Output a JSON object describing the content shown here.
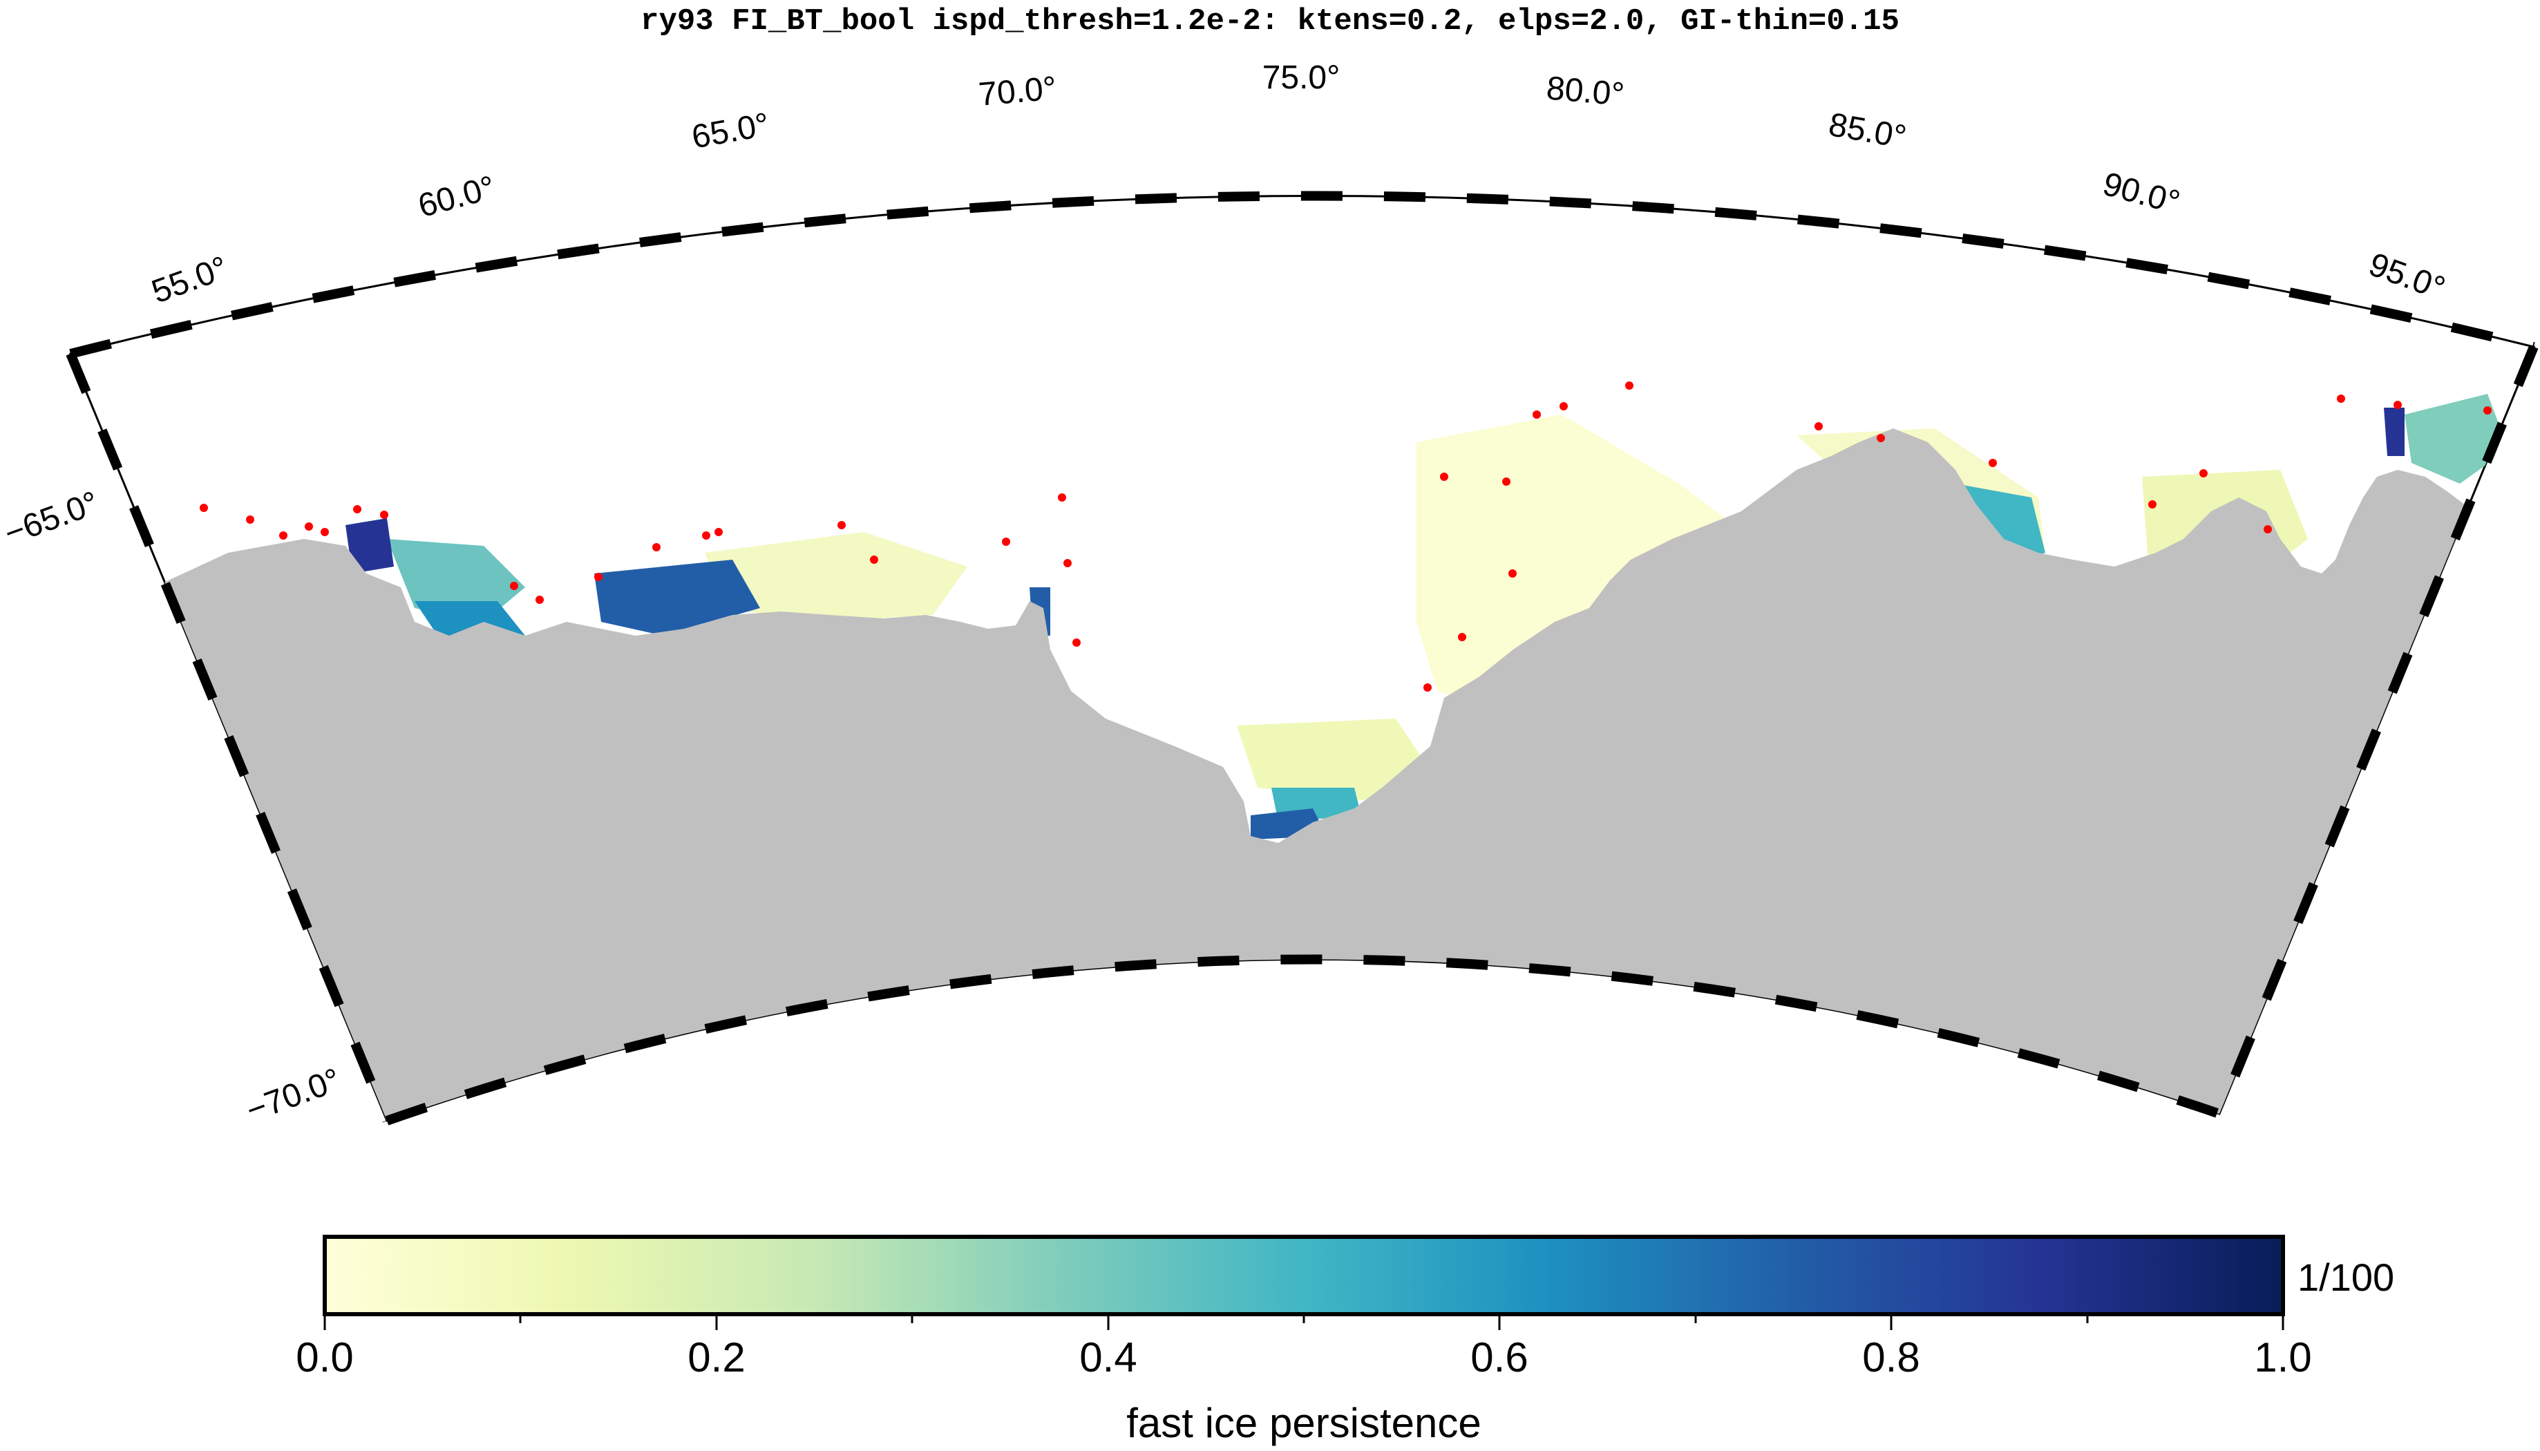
{
  "title": "ry93 FI_BT_bool ispd_thresh=1.2e-2: ktens=0.2, elps=2.0, GI-thin=0.15",
  "longitude_labels": [
    "55.0°",
    "60.0°",
    "65.0°",
    "70.0°",
    "75.0°",
    "80.0°",
    "85.0°",
    "90.0°",
    "95.0°"
  ],
  "latitude_labels": [
    "−65.0°",
    "−70.0°"
  ],
  "colorbar": {
    "ticks": [
      "0.0",
      "0.2",
      "0.4",
      "0.6",
      "0.8",
      "1.0"
    ],
    "unit_label": "1/100",
    "label": "fast ice persistence",
    "colors": [
      "#ffffd9",
      "#edf8b1",
      "#c7e9b4",
      "#7fcdbb",
      "#41b6c4",
      "#1d91c0",
      "#225ea8",
      "#253494",
      "#081d58"
    ]
  },
  "colors": {
    "land": "#c0c0c0",
    "grounded_icebergs": "#ff0000",
    "frame_dark": "#000000",
    "frame_light": "#ffffff"
  }
}
